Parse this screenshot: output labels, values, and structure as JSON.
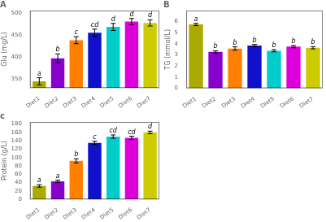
{
  "chart_data": [
    {
      "type": "bar",
      "title": "A",
      "ylabel": "Glu (mg/L)",
      "categories": [
        "Diet1",
        "Diet2",
        "Diet3",
        "Diet4",
        "Diet5",
        "Diet6",
        "Diet7"
      ],
      "values": [
        345,
        397,
        438,
        455,
        468,
        480,
        477
      ],
      "errors": [
        8,
        10,
        8,
        8,
        8,
        7,
        7
      ],
      "annotations": [
        "a",
        "b",
        "c",
        "cd",
        "d",
        "d",
        "d"
      ],
      "colors": [
        "#aaaa00",
        "#8800cc",
        "#ff8000",
        "#1111cc",
        "#00cccc",
        "#dd00dd",
        "#cccc00"
      ],
      "ylim": [
        330,
        505
      ],
      "yticks": [
        350,
        400,
        450,
        500
      ],
      "grid": false
    },
    {
      "type": "bar",
      "title": "B",
      "ylabel": "TG (mmol/L)",
      "categories": [
        "Diet1",
        "Diet2",
        "Diet3",
        "Diet4",
        "Diet5",
        "Diet6",
        "Diet7"
      ],
      "values": [
        5.75,
        3.28,
        3.58,
        3.85,
        3.38,
        3.75,
        3.65
      ],
      "errors": [
        0.1,
        0.1,
        0.15,
        0.1,
        0.1,
        0.1,
        0.1
      ],
      "annotations": [
        "a",
        "b",
        "b",
        "b",
        "b",
        "b",
        "b"
      ],
      "colors": [
        "#aaaa00",
        "#8800cc",
        "#ff8000",
        "#1111cc",
        "#00cccc",
        "#dd00dd",
        "#cccc00"
      ],
      "ylim": [
        0,
        7
      ],
      "yticks": [
        0,
        1,
        2,
        3,
        4,
        5,
        6
      ],
      "grid": false
    },
    {
      "type": "bar",
      "title": "c",
      "ylabel": "Protein (g/L)",
      "categories": [
        "Diet1",
        "Diet2",
        "Diet3",
        "Diet4",
        "Diet5",
        "Diet6",
        "Diet7"
      ],
      "values": [
        32,
        43,
        92,
        135,
        150,
        147,
        160
      ],
      "errors": [
        3,
        3,
        5,
        4,
        4,
        4,
        3
      ],
      "annotations": [
        "a",
        "a",
        "b",
        "c",
        "cd",
        "cd",
        "d"
      ],
      "colors": [
        "#aaaa00",
        "#8800cc",
        "#ff8000",
        "#1111cc",
        "#00cccc",
        "#dd00dd",
        "#cccc00"
      ],
      "ylim": [
        0,
        185
      ],
      "yticks": [
        0,
        20,
        40,
        60,
        80,
        100,
        120,
        140,
        160,
        180
      ],
      "grid": false
    }
  ]
}
